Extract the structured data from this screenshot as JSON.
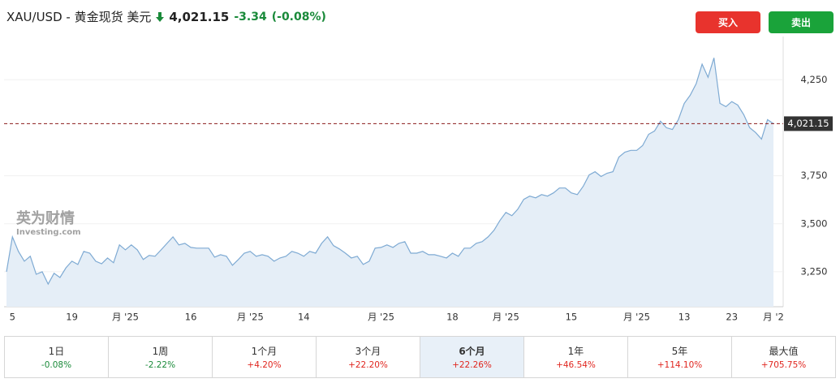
{
  "header": {
    "symbol": "XAU/USD - 黄金现货 美元",
    "price": "4,021.15",
    "change": "-3.34",
    "change_pct": "(-0.08%)"
  },
  "buttons": {
    "buy": "买入",
    "sell": "卖出"
  },
  "watermark": {
    "brand": "英为财情",
    "site": "Investing.com"
  },
  "chart_data": {
    "type": "area",
    "categories": [
      null,
      "5",
      null,
      null,
      null,
      null,
      null,
      null,
      null,
      null,
      null,
      "19",
      null,
      null,
      null,
      null,
      null,
      null,
      null,
      null,
      "月 '25",
      null,
      null,
      null,
      null,
      null,
      null,
      null,
      null,
      null,
      null,
      "16",
      null,
      null,
      null,
      null,
      null,
      null,
      null,
      null,
      null,
      "月 '25",
      null,
      null,
      null,
      null,
      null,
      null,
      null,
      null,
      "14",
      null,
      null,
      null,
      null,
      null,
      null,
      null,
      null,
      null,
      null,
      null,
      null,
      "月 '25",
      null,
      null,
      null,
      null,
      null,
      null,
      null,
      null,
      null,
      null,
      null,
      "18",
      null,
      null,
      null,
      null,
      null,
      null,
      null,
      null,
      "月 '25",
      null,
      null,
      null,
      null,
      null,
      null,
      null,
      null,
      null,
      null,
      "15",
      null,
      null,
      null,
      null,
      null,
      null,
      null,
      null,
      null,
      null,
      "月 '25",
      null,
      null,
      null,
      null,
      null,
      null,
      null,
      "13",
      null,
      null,
      null,
      null,
      null,
      null,
      null,
      "23",
      null,
      null,
      null,
      null,
      null,
      null,
      "月 '2"
    ],
    "values": [
      3250,
      3432,
      3356,
      3305,
      3331,
      3237,
      3250,
      3186,
      3242,
      3220,
      3271,
      3305,
      3288,
      3356,
      3347,
      3305,
      3292,
      3322,
      3297,
      3390,
      3364,
      3390,
      3364,
      3314,
      3335,
      3331,
      3364,
      3398,
      3432,
      3390,
      3398,
      3377,
      3373,
      3373,
      3373,
      3326,
      3339,
      3331,
      3284,
      3314,
      3347,
      3356,
      3331,
      3339,
      3331,
      3305,
      3322,
      3331,
      3356,
      3347,
      3331,
      3356,
      3347,
      3398,
      3432,
      3386,
      3369,
      3347,
      3322,
      3331,
      3288,
      3305,
      3373,
      3377,
      3390,
      3377,
      3398,
      3407,
      3347,
      3347,
      3356,
      3339,
      3339,
      3331,
      3322,
      3347,
      3331,
      3373,
      3373,
      3398,
      3407,
      3432,
      3466,
      3517,
      3559,
      3542,
      3576,
      3627,
      3644,
      3635,
      3652,
      3644,
      3661,
      3686,
      3686,
      3661,
      3652,
      3695,
      3754,
      3771,
      3746,
      3763,
      3771,
      3847,
      3873,
      3882,
      3882,
      3907,
      3966,
      3983,
      4034,
      4000,
      3991,
      4042,
      4127,
      4169,
      4229,
      4331,
      4263,
      4364,
      4127,
      4110,
      4136,
      4118,
      4068,
      4000,
      3975,
      3941,
      4042,
      4021.15
    ],
    "color": "#7eaad3",
    "fill": "#e5eef7",
    "ylim": [
      3068,
      4475
    ],
    "yticks": [
      {
        "value": 3250,
        "label": "3,250"
      },
      {
        "value": 3500,
        "label": "3,500"
      },
      {
        "value": 3750,
        "label": "3,750"
      },
      {
        "value": 4250,
        "label": "4,250"
      }
    ],
    "grid": true,
    "current": {
      "value": 4021.15,
      "label": "4,021.15"
    }
  },
  "periods": [
    {
      "label": "1日",
      "change": "-0.08%"
    },
    {
      "label": "1周",
      "change": "-2.22%"
    },
    {
      "label": "1个月",
      "change": "+4.20%"
    },
    {
      "label": "3个月",
      "change": "+22.20%"
    },
    {
      "label": "6个月",
      "change": "+22.26%"
    },
    {
      "label": "1年",
      "change": "+46.54%"
    },
    {
      "label": "5年",
      "change": "+114.10%"
    },
    {
      "label": "最大值",
      "change": "+705.75%"
    }
  ],
  "selected_period": 4
}
